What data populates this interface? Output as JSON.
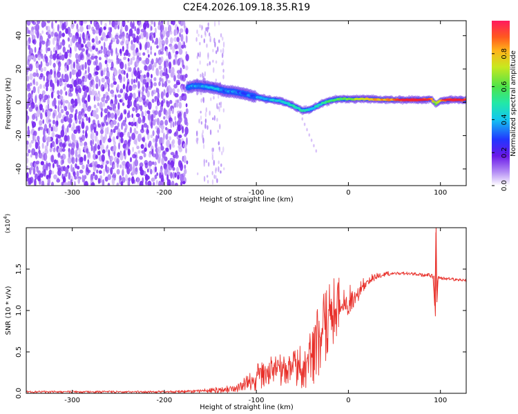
{
  "title": "C2E4.2026.109.18.35.R19",
  "colors": {
    "frame": "#000000",
    "snr_line": "#e8302a",
    "spectro_background": "#ffffff",
    "scatter_purple": "#7a2bf0",
    "scatter_light": "#c9aaf7",
    "ridge_blue": "#1d55ff",
    "ridge_cyan": "#27e0d8",
    "ridge_green": "#4ee34a",
    "ridge_red": "#f0203a"
  },
  "chart_data": [
    {
      "type": "heatmap",
      "name": "spectrogram",
      "xlabel": "Height of straight line (km)",
      "ylabel": "Frequency (Hz)",
      "xlim": [
        -350,
        128
      ],
      "ylim": [
        -50,
        49
      ],
      "xticks": [
        -300,
        -200,
        -100,
        0,
        100
      ],
      "xtick_labels": [
        "-300",
        "-200",
        "-100",
        "0",
        "100"
      ],
      "yticks": [
        -40,
        -20,
        0,
        20,
        40
      ],
      "ytick_labels": [
        "-40",
        "-20",
        "0",
        "20",
        "40"
      ],
      "noise_region_x": [
        -350,
        -175
      ],
      "sparse_noise_region_x": [
        -165,
        -135
      ],
      "ridge": {
        "x": [
          -175,
          -165,
          -150,
          -135,
          -120,
          -105,
          -90,
          -75,
          -60,
          -50,
          -40,
          -30,
          -20,
          -10,
          0,
          20,
          40,
          60,
          80,
          90,
          95,
          100,
          110,
          128
        ],
        "y": [
          9,
          10,
          9,
          7,
          6,
          4,
          2,
          1,
          -2,
          -5,
          -4,
          -1,
          1,
          2,
          2,
          2,
          1.5,
          1.5,
          1.5,
          2,
          -1,
          1,
          1.5,
          1.5
        ],
        "amplitude": [
          0.35,
          0.4,
          0.4,
          0.35,
          0.35,
          0.35,
          0.4,
          0.45,
          0.5,
          0.5,
          0.45,
          0.5,
          0.55,
          0.6,
          0.65,
          0.8,
          0.85,
          0.9,
          0.95,
          0.9,
          0.6,
          0.85,
          0.9,
          0.9
        ]
      },
      "colorbar": {
        "label": "Normalized spectral amplitude",
        "range": [
          0,
          1
        ],
        "ticks": [
          0.0,
          0.2,
          0.4,
          0.6,
          0.8
        ],
        "tick_labels": [
          "0.0",
          "0.2",
          "0.4",
          "0.6",
          "0.8"
        ]
      }
    },
    {
      "type": "line",
      "name": "snr",
      "xlabel": "Height of straight line (km)",
      "ylabel": "SNR (10 * v/v)",
      "scale_label": "(x10",
      "scale_exponent": "4",
      "scale_close": ")",
      "xlim": [
        -350,
        128
      ],
      "ylim": [
        0,
        2.0
      ],
      "xticks": [
        -300,
        -200,
        -100,
        0,
        100
      ],
      "xtick_labels": [
        "-300",
        "-200",
        "-100",
        "0",
        "100"
      ],
      "yticks": [
        0.0,
        0.5,
        1.0,
        1.5
      ],
      "ytick_labels": [
        "0.0",
        "0.5",
        "1.0",
        "1.5"
      ],
      "series": [
        {
          "name": "SNR",
          "x": [
            -350,
            -300,
            -250,
            -200,
            -160,
            -140,
            -120,
            -110,
            -100,
            -90,
            -80,
            -70,
            -60,
            -50,
            -45,
            -40,
            -35,
            -30,
            -25,
            -20,
            -15,
            -10,
            -5,
            0,
            10,
            20,
            30,
            40,
            50,
            60,
            70,
            80,
            88,
            92,
            94,
            95,
            96,
            97,
            98,
            100,
            110,
            120,
            128
          ],
          "y": [
            0.02,
            0.02,
            0.02,
            0.02,
            0.03,
            0.04,
            0.06,
            0.12,
            0.2,
            0.25,
            0.3,
            0.3,
            0.3,
            0.35,
            0.3,
            0.5,
            0.6,
            0.7,
            0.8,
            0.9,
            1.0,
            1.05,
            1.05,
            1.1,
            1.2,
            1.35,
            1.4,
            1.43,
            1.45,
            1.45,
            1.44,
            1.43,
            1.42,
            1.4,
            1.0,
            1.98,
            1.2,
            1.38,
            1.4,
            1.4,
            1.38,
            1.37,
            1.37
          ],
          "envelope_high": [
            0.03,
            0.03,
            0.03,
            0.03,
            0.05,
            0.08,
            0.12,
            0.25,
            0.35,
            0.42,
            0.5,
            0.45,
            0.5,
            0.62,
            0.55,
            0.9,
            1.05,
            1.2,
            1.3,
            1.35,
            1.4,
            1.4,
            1.35,
            1.3,
            1.35,
            1.42,
            1.45,
            1.47,
            1.48,
            1.47,
            1.46,
            1.45,
            1.45,
            1.44,
            1.45,
            1.98,
            1.42,
            1.42,
            1.42,
            1.41,
            1.4,
            1.39,
            1.39
          ],
          "envelope_low": [
            0.0,
            0.0,
            0.0,
            0.0,
            0.0,
            0.0,
            0.01,
            0.02,
            0.03,
            0.05,
            0.05,
            0.05,
            0.05,
            0.05,
            0.05,
            0.08,
            0.15,
            0.2,
            0.3,
            0.45,
            0.6,
            0.75,
            0.85,
            0.95,
            1.1,
            1.3,
            1.37,
            1.41,
            1.42,
            1.43,
            1.42,
            1.41,
            1.4,
            1.38,
            0.95,
            1.5,
            1.15,
            1.35,
            1.37,
            1.37,
            1.36,
            1.35,
            1.35
          ]
        }
      ]
    }
  ]
}
